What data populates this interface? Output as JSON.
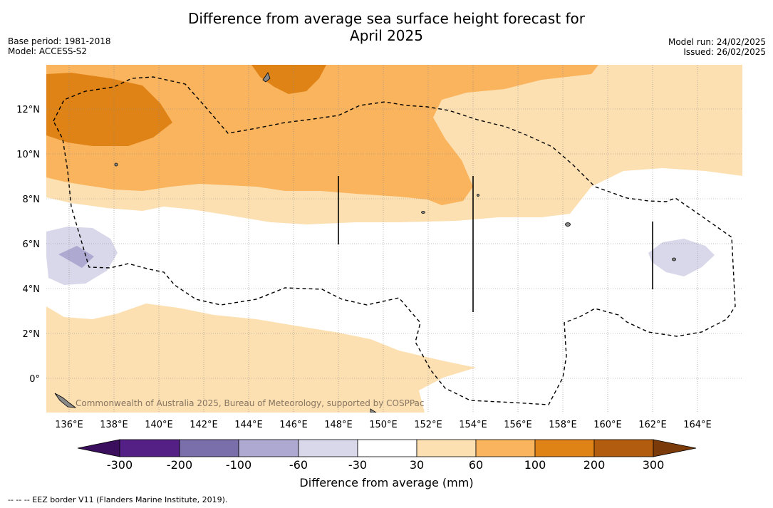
{
  "title_line1": "Difference from average sea surface height forecast for",
  "title_line2": "April 2025",
  "meta_left": {
    "base_period": "Base period: 1981-2018",
    "model": "Model: ACCESS-S2"
  },
  "meta_right": {
    "model_run": "Model run: 24/02/2025",
    "issued": "Issued: 26/02/2025"
  },
  "lon_labels": [
    "136°E",
    "138°E",
    "140°E",
    "142°E",
    "144°E",
    "146°E",
    "148°E",
    "150°E",
    "152°E",
    "154°E",
    "156°E",
    "158°E",
    "160°E",
    "162°E",
    "164°E"
  ],
  "lat_labels": [
    "12°N",
    "10°N",
    "8°N",
    "6°N",
    "4°N",
    "2°N",
    "0°"
  ],
  "watermark": "Commonwealth of Australia 2025, Bureau of Meteorology, supported by COSPPac",
  "colorbar": {
    "ticks": [
      "-300",
      "-200",
      "-100",
      "-60",
      "-30",
      "30",
      "60",
      "100",
      "200",
      "300"
    ],
    "colors": [
      "#3b0f5e",
      "#552085",
      "#7b6fab",
      "#aea9d1",
      "#d8d8ea",
      "#ffffff",
      "#fde0b2",
      "#f9b45d",
      "#e08317",
      "#b15c0e",
      "#7b3a0a"
    ],
    "label": "Difference from average (mm)"
  },
  "footnote": "--  --  -- EEZ border V11 (Flanders Marine Institute, 2019)."
}
